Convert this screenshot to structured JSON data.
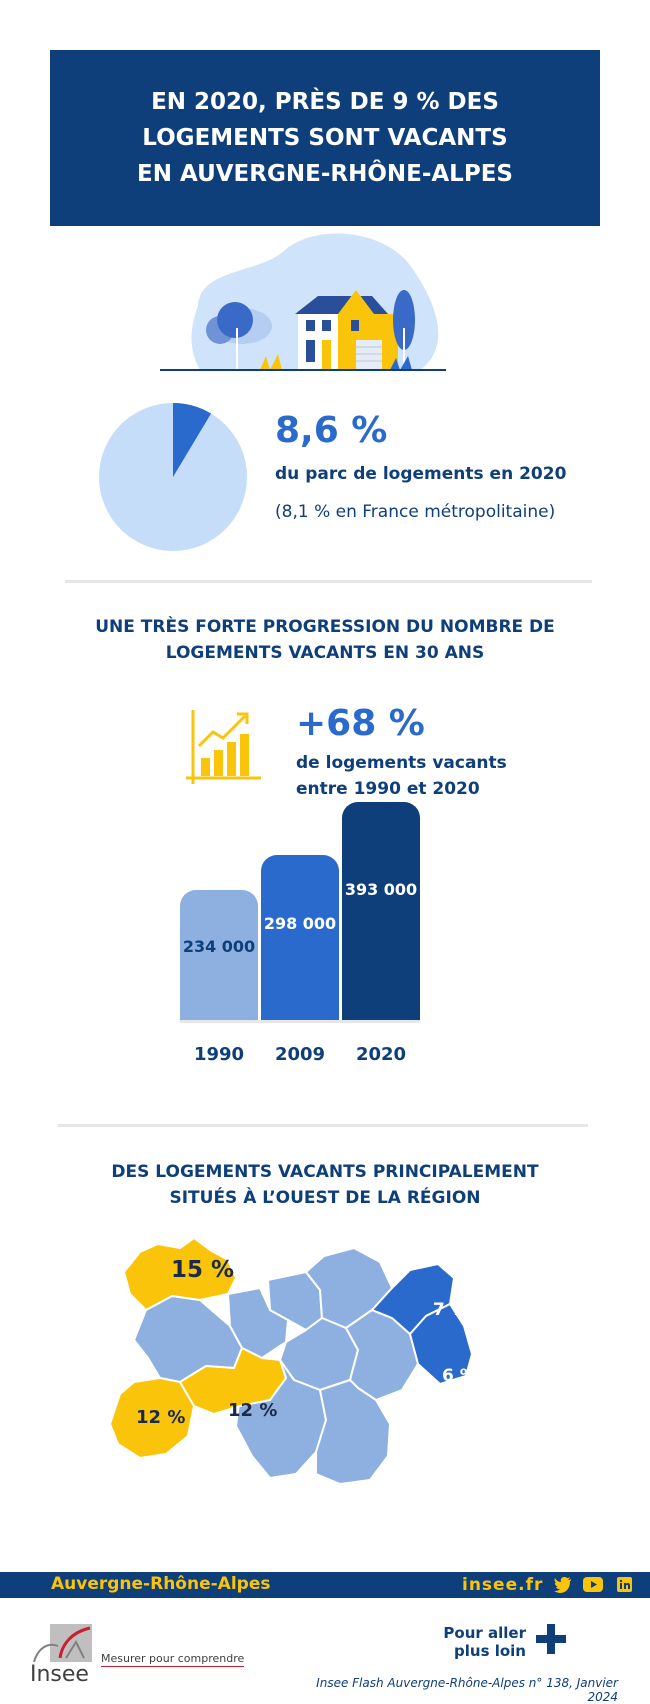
{
  "title": {
    "line1": "EN 2020, PRÈS DE 9 % DES",
    "line2": "LOGEMENTS SONT VACANTS",
    "line3": "EN AUVERGNE-RHÔNE-ALPES"
  },
  "share": {
    "value": "8,6 %",
    "label": "du parc de logements en 2020",
    "note": "(8,1 % en France métropolitaine)",
    "fraction": 0.086
  },
  "progression": {
    "heading1": "UNE TRÈS FORTE PROGRESSION DU NOMBRE DE",
    "heading2": "LOGEMENTS VACANTS EN 30 ANS",
    "value": "+68 %",
    "label1": "de logements vacants",
    "label2": "entre 1990 et 2020"
  },
  "chart_data": {
    "type": "bar",
    "categories": [
      "1990",
      "2009",
      "2020"
    ],
    "values": [
      234000,
      298000,
      393000
    ],
    "value_labels": [
      "234 000",
      "298 000",
      "393 000"
    ],
    "colors": [
      "#8eb0e0",
      "#2a6acd",
      "#0f3f7a"
    ]
  },
  "map": {
    "heading1": "DES LOGEMENTS VACANTS PRINCIPALEMENT",
    "heading2": "SITUÉS À L’OUEST DE LA RÉGION",
    "labels": {
      "north_west": "15 %",
      "south_west": "12 %",
      "south_centre": "12 %",
      "north_east": "7 %",
      "east": "6 %"
    },
    "colors": {
      "high": "#f9c40a",
      "mid": "#8eb0e0",
      "low": "#2a6acd"
    }
  },
  "footer": {
    "region": "Auvergne-Rhône-Alpes",
    "site": "insee.fr"
  },
  "bottom": {
    "more1": "Pour aller",
    "more2": "plus loin",
    "brand": "Insee",
    "tagline": "Mesurer pour comprendre",
    "source": "Insee Flash Auvergne-Rhône-Alpes n° 138, Janvier 2024"
  }
}
